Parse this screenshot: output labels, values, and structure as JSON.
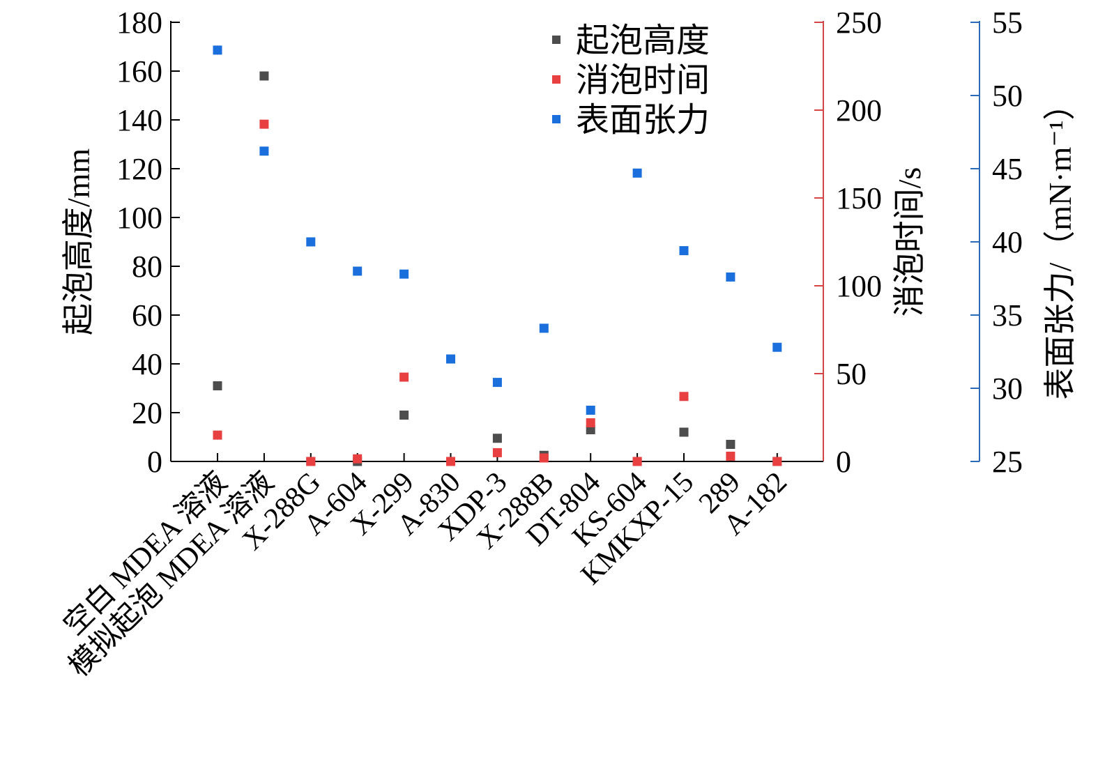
{
  "chart_data": {
    "type": "scatter",
    "categories": [
      "空白 MDEA 溶液",
      "模拟起泡 MDEA 溶液",
      "X-288G",
      "A-604",
      "X-299",
      "A-830",
      "XDP-3",
      "X-288B",
      "DT-804",
      "KS-604",
      "KMKXP-15",
      "289",
      "A-182"
    ],
    "series": [
      {
        "name": "起泡高度",
        "axis": "left",
        "color": "#4d4d4d",
        "values": [
          31,
          158,
          0,
          0,
          19,
          0,
          9.5,
          2.5,
          13,
          0,
          12,
          7,
          0
        ]
      },
      {
        "name": "消泡时间",
        "axis": "right1",
        "color": "#e84040",
        "values": [
          15,
          192,
          0,
          1.5,
          48,
          0,
          5,
          2,
          22,
          0,
          37,
          3,
          0
        ]
      },
      {
        "name": "表面张力",
        "axis": "right2",
        "color": "#1a6fdd",
        "values": [
          53.1,
          46.2,
          40.0,
          38.0,
          37.8,
          32.0,
          30.4,
          34.1,
          28.5,
          44.7,
          39.4,
          37.6,
          32.8
        ]
      }
    ],
    "axes": {
      "left": {
        "label": "起泡高度/mm",
        "min": 0,
        "max": 180,
        "ticks": [
          0,
          20,
          40,
          60,
          80,
          100,
          120,
          140,
          160,
          180
        ],
        "color": "#000000"
      },
      "right1": {
        "label": "消泡时间/s",
        "min": 0,
        "max": 250,
        "ticks": [
          0,
          50,
          100,
          150,
          200,
          250
        ],
        "color": "#d64545"
      },
      "right2": {
        "label": "表面张力/（mN·m⁻¹）",
        "min": 25,
        "max": 55,
        "ticks": [
          25,
          30,
          35,
          40,
          45,
          50,
          55
        ],
        "color": "#2a6ab8"
      }
    },
    "legend": {
      "position": "top-right"
    },
    "grid": false
  }
}
